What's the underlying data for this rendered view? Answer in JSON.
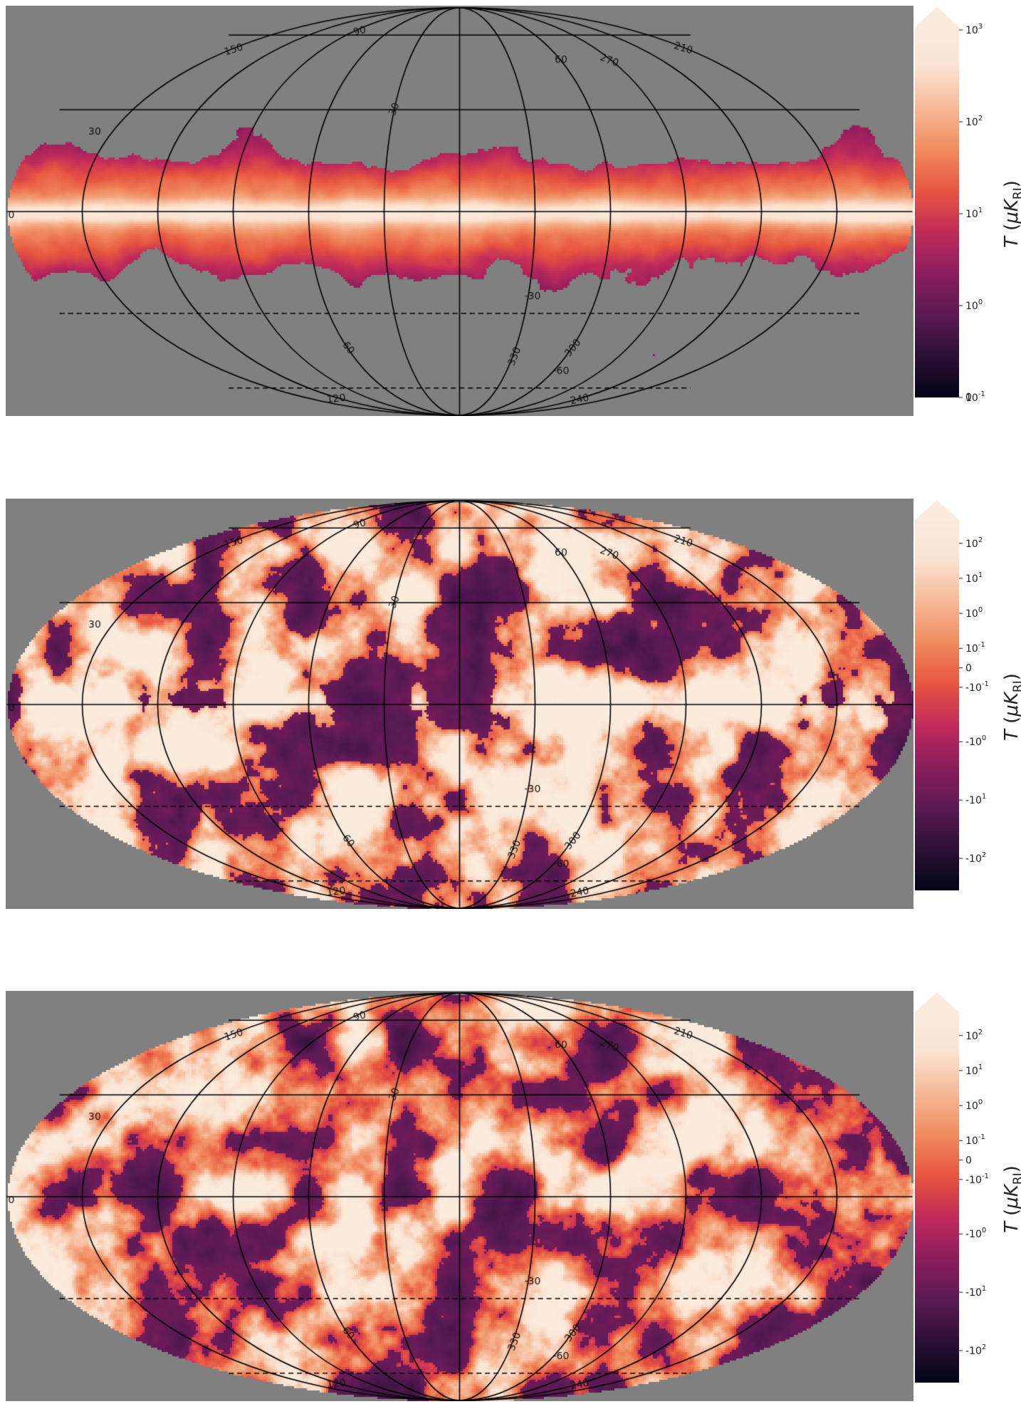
{
  "colors": {
    "background_mask": "#808080",
    "grid_line": "#000000",
    "cmap": [
      "#03051a",
      "#2b1035",
      "#5a1a55",
      "#8b1d5c",
      "#c02a5b",
      "#e8543f",
      "#f08a5e",
      "#f6b795",
      "#fae2d0",
      "#faebdd"
    ]
  },
  "panels": [
    {
      "id": "panel-1",
      "style": "galactic-plane",
      "colorbar": {
        "scale": "log",
        "tick_labels": [
          "10^3",
          "10^2",
          "10^1",
          "10^0",
          "10^-1"
        ],
        "label": "T (μK_RJ)",
        "extra_label": "0"
      }
    },
    {
      "id": "panel-2",
      "style": "full-sky-a",
      "colorbar": {
        "scale": "symlog",
        "tick_labels": [
          "10^2",
          "10^1",
          "10^0",
          "10^-1",
          "0",
          "-10^-1",
          "-10^0",
          "-10^1",
          "-10^2"
        ],
        "label": "T (μK_RJ)"
      }
    },
    {
      "id": "panel-3",
      "style": "full-sky-b",
      "colorbar": {
        "scale": "symlog",
        "tick_labels": [
          "10^2",
          "10^1",
          "10^0",
          "10^-1",
          "0",
          "-10^-1",
          "-10^0",
          "-10^1",
          "-10^2"
        ],
        "label": "T (μK_RJ)"
      }
    }
  ],
  "graticule": {
    "lat_labels": [
      "30",
      "0",
      "-30",
      "60",
      "-60"
    ],
    "lon_labels_top": [
      "150",
      "90",
      "30",
      "60",
      "270",
      "210"
    ],
    "lon_labels_bottom": [
      "60",
      "330",
      "300",
      "120",
      "240"
    ]
  },
  "colorbar_label": "T (μK_RJ)"
}
